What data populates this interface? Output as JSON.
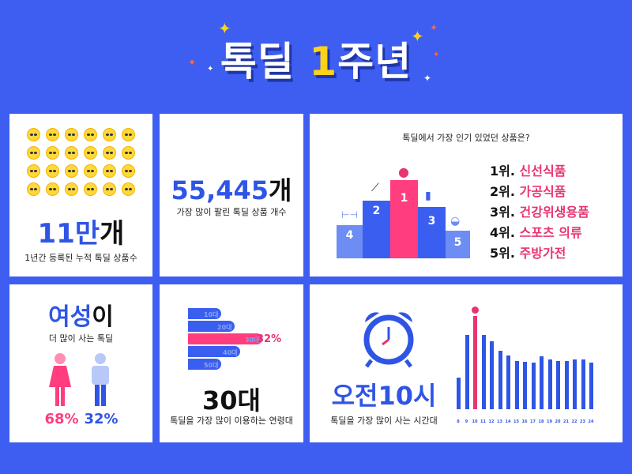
{
  "title": {
    "main": "톡딜 ",
    "highlight": "1",
    "rest": "주년"
  },
  "products": {
    "count_num": "11만",
    "count_unit": "개",
    "desc": "1년간 등록된 누적 톡딜 상품수"
  },
  "sold": {
    "count_num": "55,445",
    "count_unit": "개",
    "desc": "가장 많이 팔린 톡딜 상품 개수"
  },
  "popular": {
    "question": "톡딜에서 가장 인기 있었던 상품은?",
    "podium": [
      "1",
      "2",
      "3",
      "4",
      "5"
    ],
    "ranks": [
      {
        "no": "1위.",
        "cat": "신선식품"
      },
      {
        "no": "2위.",
        "cat": "가공식품"
      },
      {
        "no": "3위.",
        "cat": "건강위생용품"
      },
      {
        "no": "4위.",
        "cat": "스포츠 의류"
      },
      {
        "no": "5위.",
        "cat": "주방가전"
      }
    ]
  },
  "gender": {
    "headline_a": "여성",
    "headline_b": "이",
    "desc": "더 많이 사는 톡딜",
    "female_pct": "68%",
    "male_pct": "32%",
    "female_color": "#ff3d7f",
    "male_color": "#2f55e6"
  },
  "age": {
    "bars": [
      {
        "label": "10대",
        "share": 0.38
      },
      {
        "label": "20대",
        "share": 0.54
      },
      {
        "label": "30대",
        "share": 0.85,
        "highlight": true
      },
      {
        "label": "40대",
        "share": 0.6
      },
      {
        "label": "50대",
        "share": 0.38
      }
    ],
    "highlight_pct": "32%",
    "headline": "30대",
    "desc": "톡딜을 가장 많이 이용하는 연령대"
  },
  "time": {
    "headline": "오전10시",
    "desc": "톡딜을 가장 많이 사는 시간대",
    "chart_data": {
      "type": "bar",
      "categories": [
        "8",
        "9",
        "10",
        "11",
        "12",
        "13",
        "14",
        "15",
        "16",
        "17",
        "18",
        "19",
        "20",
        "21",
        "22",
        "23",
        "24"
      ],
      "values": [
        34,
        80,
        100,
        80,
        73,
        63,
        58,
        52,
        51,
        50,
        57,
        53,
        52,
        52,
        53,
        53,
        50
      ],
      "highlight_index": 2,
      "highlight_color": "#e83572",
      "bar_color": "#2f55e6"
    }
  },
  "colors": {
    "background": "#3d5ef0",
    "accent": "#2f55e6",
    "pink": "#e83572",
    "yellow": "#ffd21a"
  }
}
